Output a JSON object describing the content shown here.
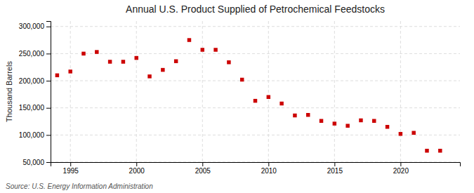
{
  "chart_data": {
    "type": "scatter",
    "title": "Annual U.S. Product Supplied of Petrochemical Feedstocks",
    "ylabel": "Thousand Barrels",
    "source": "Source: U.S. Energy Information Administration",
    "x": [
      1994,
      1995,
      1996,
      1997,
      1998,
      1999,
      2000,
      2001,
      2002,
      2003,
      2004,
      2005,
      2006,
      2007,
      2008,
      2009,
      2010,
      2011,
      2012,
      2013,
      2014,
      2015,
      2016,
      2017,
      2018,
      2019,
      2020,
      2021,
      2022,
      2023
    ],
    "values": [
      210000,
      217000,
      250000,
      253000,
      235000,
      235000,
      242000,
      208000,
      220000,
      236000,
      275000,
      257000,
      257000,
      234000,
      202000,
      163000,
      170000,
      158000,
      136000,
      137000,
      126000,
      121000,
      117000,
      127000,
      126000,
      115000,
      102000,
      104000,
      71000,
      71000
    ],
    "color": "#cc0000",
    "marker": "square",
    "xlim": [
      1993.5,
      2024.5
    ],
    "xticks": [
      1995,
      2000,
      2005,
      2010,
      2015,
      2020
    ],
    "ylim": [
      50000,
      310000
    ],
    "yticks": [
      {
        "value": 50000,
        "label": "50,000"
      },
      {
        "value": 100000,
        "label": "100,000"
      },
      {
        "value": 150000,
        "label": "150,000"
      },
      {
        "value": 200000,
        "label": "200,000"
      },
      {
        "value": 250000,
        "label": "250,000"
      },
      {
        "value": 300000,
        "label": "300,000"
      }
    ],
    "grid": true
  }
}
